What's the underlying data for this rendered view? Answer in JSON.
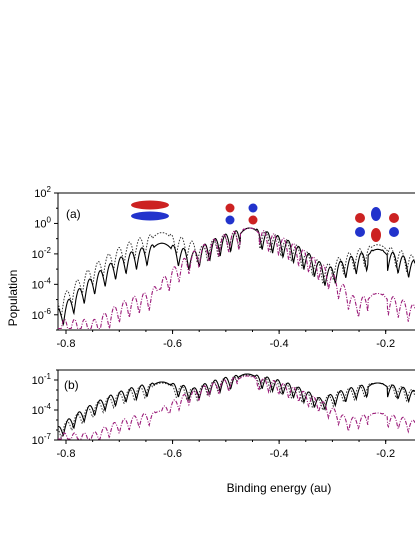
{
  "chart_data": {
    "type": "line",
    "ylabel": "Population",
    "xlabel": "Binding energy (au)",
    "xlim": [
      -0.815,
      -0.145
    ],
    "x_ticks": [
      -0.8,
      -0.6,
      -0.4,
      -0.2
    ],
    "x_tick_labels": [
      "-0.8",
      "-0.6",
      "-0.4",
      "-0.2"
    ],
    "colors": {
      "solid": "#000000",
      "dotted": "#333333",
      "dashdot": "#9b1d7a",
      "orbital_red": "#cc2222",
      "orbital_blue": "#2233cc"
    },
    "panels": [
      {
        "label": "(a)",
        "y_scale": "log",
        "ylim_exp": [
          -7,
          2
        ],
        "y_ticks_exp": [
          2,
          0,
          -2,
          -4,
          -6
        ],
        "y_tick_labels": [
          {
            "base": "10",
            "exp": "2"
          },
          {
            "base": "10",
            "exp": "0"
          },
          {
            "base": "10",
            "exp": "-2"
          },
          {
            "base": "10",
            "exp": "-4"
          },
          {
            "base": "10",
            "exp": "-6"
          }
        ],
        "peaks": [
          {
            "x": -0.62,
            "solid_exp": -1.3,
            "dotted_exp": -0.6,
            "dashdot_exp": -4.3
          },
          {
            "x": -0.455,
            "solid_exp": -0.3,
            "dotted_exp": -0.3,
            "dashdot_exp": -0.3
          },
          {
            "x": -0.215,
            "solid_exp": -1.7,
            "dotted_exp": -1.4,
            "dashdot_exp": -4.6
          }
        ],
        "baseline_exp": {
          "solid": -5.6,
          "dotted": -5.0,
          "dashdot": -6.3
        },
        "orbitals": [
          "sigma-orbital",
          "pi-orbital",
          "delta-orbital"
        ]
      },
      {
        "label": "(b)",
        "y_scale": "log",
        "ylim_exp": [
          -7,
          0
        ],
        "y_ticks_exp": [
          -1,
          -4,
          -7
        ],
        "y_tick_labels": [
          {
            "base": "10",
            "exp": "-1"
          },
          {
            "base": "10",
            "exp": "-4"
          },
          {
            "base": "10",
            "exp": "-7"
          }
        ],
        "peaks": [
          {
            "x": -0.62,
            "solid_exp": -1.2,
            "dotted_exp": -1.3,
            "dashdot_exp": -4.1
          },
          {
            "x": -0.46,
            "solid_exp": -0.4,
            "dotted_exp": -0.5,
            "dashdot_exp": -0.6
          },
          {
            "x": -0.215,
            "solid_exp": -1.3,
            "dotted_exp": -1.3,
            "dashdot_exp": -4.3
          }
        ],
        "baseline_exp": {
          "solid": -5.8,
          "dotted": -5.6,
          "dashdot": -6.3
        }
      }
    ]
  }
}
